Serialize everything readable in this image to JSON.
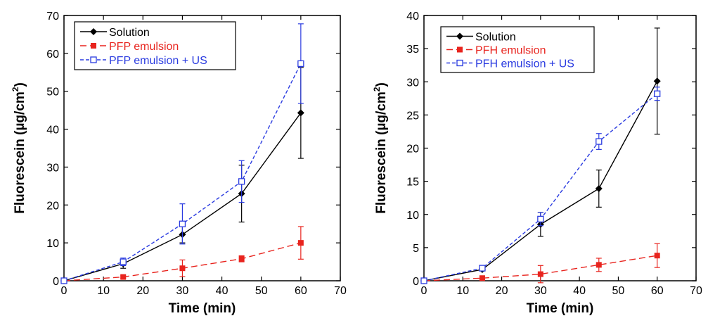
{
  "chart_data": [
    {
      "type": "line",
      "xlabel": "Time (min)",
      "ylabel_main": "Fluorescein (µg/cm",
      "ylabel_sup": "2",
      "ylabel_end": ")",
      "xlim": [
        0,
        70
      ],
      "ylim": [
        0,
        70
      ],
      "xticks": [
        0,
        10,
        20,
        30,
        40,
        50,
        60,
        70
      ],
      "yticks": [
        0,
        10,
        20,
        30,
        40,
        50,
        60,
        70
      ],
      "grid": false,
      "legend_position": "top-left",
      "series": [
        {
          "name": "Solution",
          "color": "#000000",
          "dash": "solid",
          "marker": "diamond",
          "x": [
            0,
            15,
            30,
            45,
            60
          ],
          "y": [
            0,
            4.5,
            12.2,
            23.0,
            44.3
          ],
          "err": [
            0,
            1.2,
            2.2,
            7.5,
            12.0
          ]
        },
        {
          "name": "PFP emulsion",
          "color": "#e8241e",
          "dash": "long-dash",
          "marker": "filled-square",
          "x": [
            0,
            15,
            30,
            45,
            60
          ],
          "y": [
            0,
            1.0,
            3.3,
            5.8,
            10.0
          ],
          "err": [
            0,
            0.3,
            2.2,
            0.8,
            4.3
          ]
        },
        {
          "name": "PFP emulsion + US",
          "color": "#2a3be0",
          "dash": "short-dash",
          "marker": "open-square",
          "x": [
            0,
            15,
            30,
            45,
            60
          ],
          "y": [
            0,
            5.0,
            15.0,
            26.2,
            57.3
          ],
          "err": [
            0,
            1.0,
            5.3,
            5.5,
            10.5
          ]
        }
      ]
    },
    {
      "type": "line",
      "xlabel": "Time (min)",
      "ylabel_main": "Fluorescein (µg/cm",
      "ylabel_sup": "2",
      "ylabel_end": ")",
      "xlim": [
        0,
        70
      ],
      "ylim": [
        0,
        40
      ],
      "xticks": [
        0,
        10,
        20,
        30,
        40,
        50,
        60,
        70
      ],
      "yticks": [
        0,
        5,
        10,
        15,
        20,
        25,
        30,
        35,
        40
      ],
      "grid": false,
      "legend_position": "top-left",
      "series": [
        {
          "name": "Solution",
          "color": "#000000",
          "dash": "solid",
          "marker": "diamond",
          "x": [
            0,
            15,
            30,
            45,
            60
          ],
          "y": [
            0,
            1.7,
            8.5,
            13.9,
            30.1
          ],
          "err": [
            0,
            0.2,
            1.8,
            2.8,
            8.0
          ]
        },
        {
          "name": "PFH emulsion",
          "color": "#e8241e",
          "dash": "long-dash",
          "marker": "filled-square",
          "x": [
            0,
            15,
            30,
            45,
            60
          ],
          "y": [
            0,
            0.4,
            1.0,
            2.4,
            3.8
          ],
          "err": [
            0,
            0.2,
            1.3,
            1.0,
            1.8
          ]
        },
        {
          "name": "PFH emulsion + US",
          "color": "#2a3be0",
          "dash": "short-dash",
          "marker": "open-square",
          "x": [
            0,
            15,
            30,
            45,
            60
          ],
          "y": [
            0,
            1.9,
            9.3,
            21.0,
            28.2
          ],
          "err": [
            0,
            0.2,
            1.0,
            1.2,
            1.0
          ]
        }
      ]
    }
  ]
}
